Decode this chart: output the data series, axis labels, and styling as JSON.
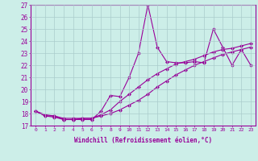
{
  "xlabel": "Windchill (Refroidissement éolien,°C)",
  "x_values": [
    0,
    1,
    2,
    3,
    4,
    5,
    6,
    7,
    8,
    9,
    10,
    11,
    12,
    13,
    14,
    15,
    16,
    17,
    18,
    19,
    20,
    21,
    22,
    23
  ],
  "line1": [
    18.2,
    17.8,
    17.8,
    17.5,
    17.5,
    17.5,
    17.5,
    18.2,
    19.5,
    19.4,
    21.0,
    23.0,
    27.0,
    23.5,
    22.3,
    22.2,
    22.2,
    22.3,
    22.2,
    25.0,
    23.5,
    22.0,
    23.3,
    22.0
  ],
  "line2": [
    18.2,
    17.8,
    17.7,
    17.5,
    17.5,
    17.6,
    17.6,
    17.9,
    18.3,
    19.0,
    19.6,
    20.2,
    20.8,
    21.3,
    21.7,
    22.1,
    22.3,
    22.5,
    22.8,
    23.1,
    23.3,
    23.4,
    23.6,
    23.8
  ],
  "line3": [
    18.2,
    17.9,
    17.8,
    17.6,
    17.6,
    17.6,
    17.6,
    17.8,
    18.0,
    18.3,
    18.7,
    19.1,
    19.6,
    20.2,
    20.7,
    21.2,
    21.6,
    22.0,
    22.3,
    22.6,
    22.9,
    23.1,
    23.3,
    23.5
  ],
  "line_color": "#990099",
  "bg_color": "#cceee8",
  "grid_color": "#aacccc",
  "ylim": [
    17,
    27
  ],
  "xlim": [
    -0.5,
    23.5
  ],
  "yticks": [
    17,
    18,
    19,
    20,
    21,
    22,
    23,
    24,
    25,
    26,
    27
  ],
  "xtick_labels": [
    "0",
    "1",
    "2",
    "3",
    "4",
    "5",
    "6",
    "7",
    "8",
    "9",
    "10",
    "11",
    "12",
    "13",
    "14",
    "15",
    "16",
    "17",
    "18",
    "19",
    "20",
    "21",
    "22",
    "23"
  ],
  "marker": "D",
  "markersize": 2.5,
  "linewidth": 0.8
}
